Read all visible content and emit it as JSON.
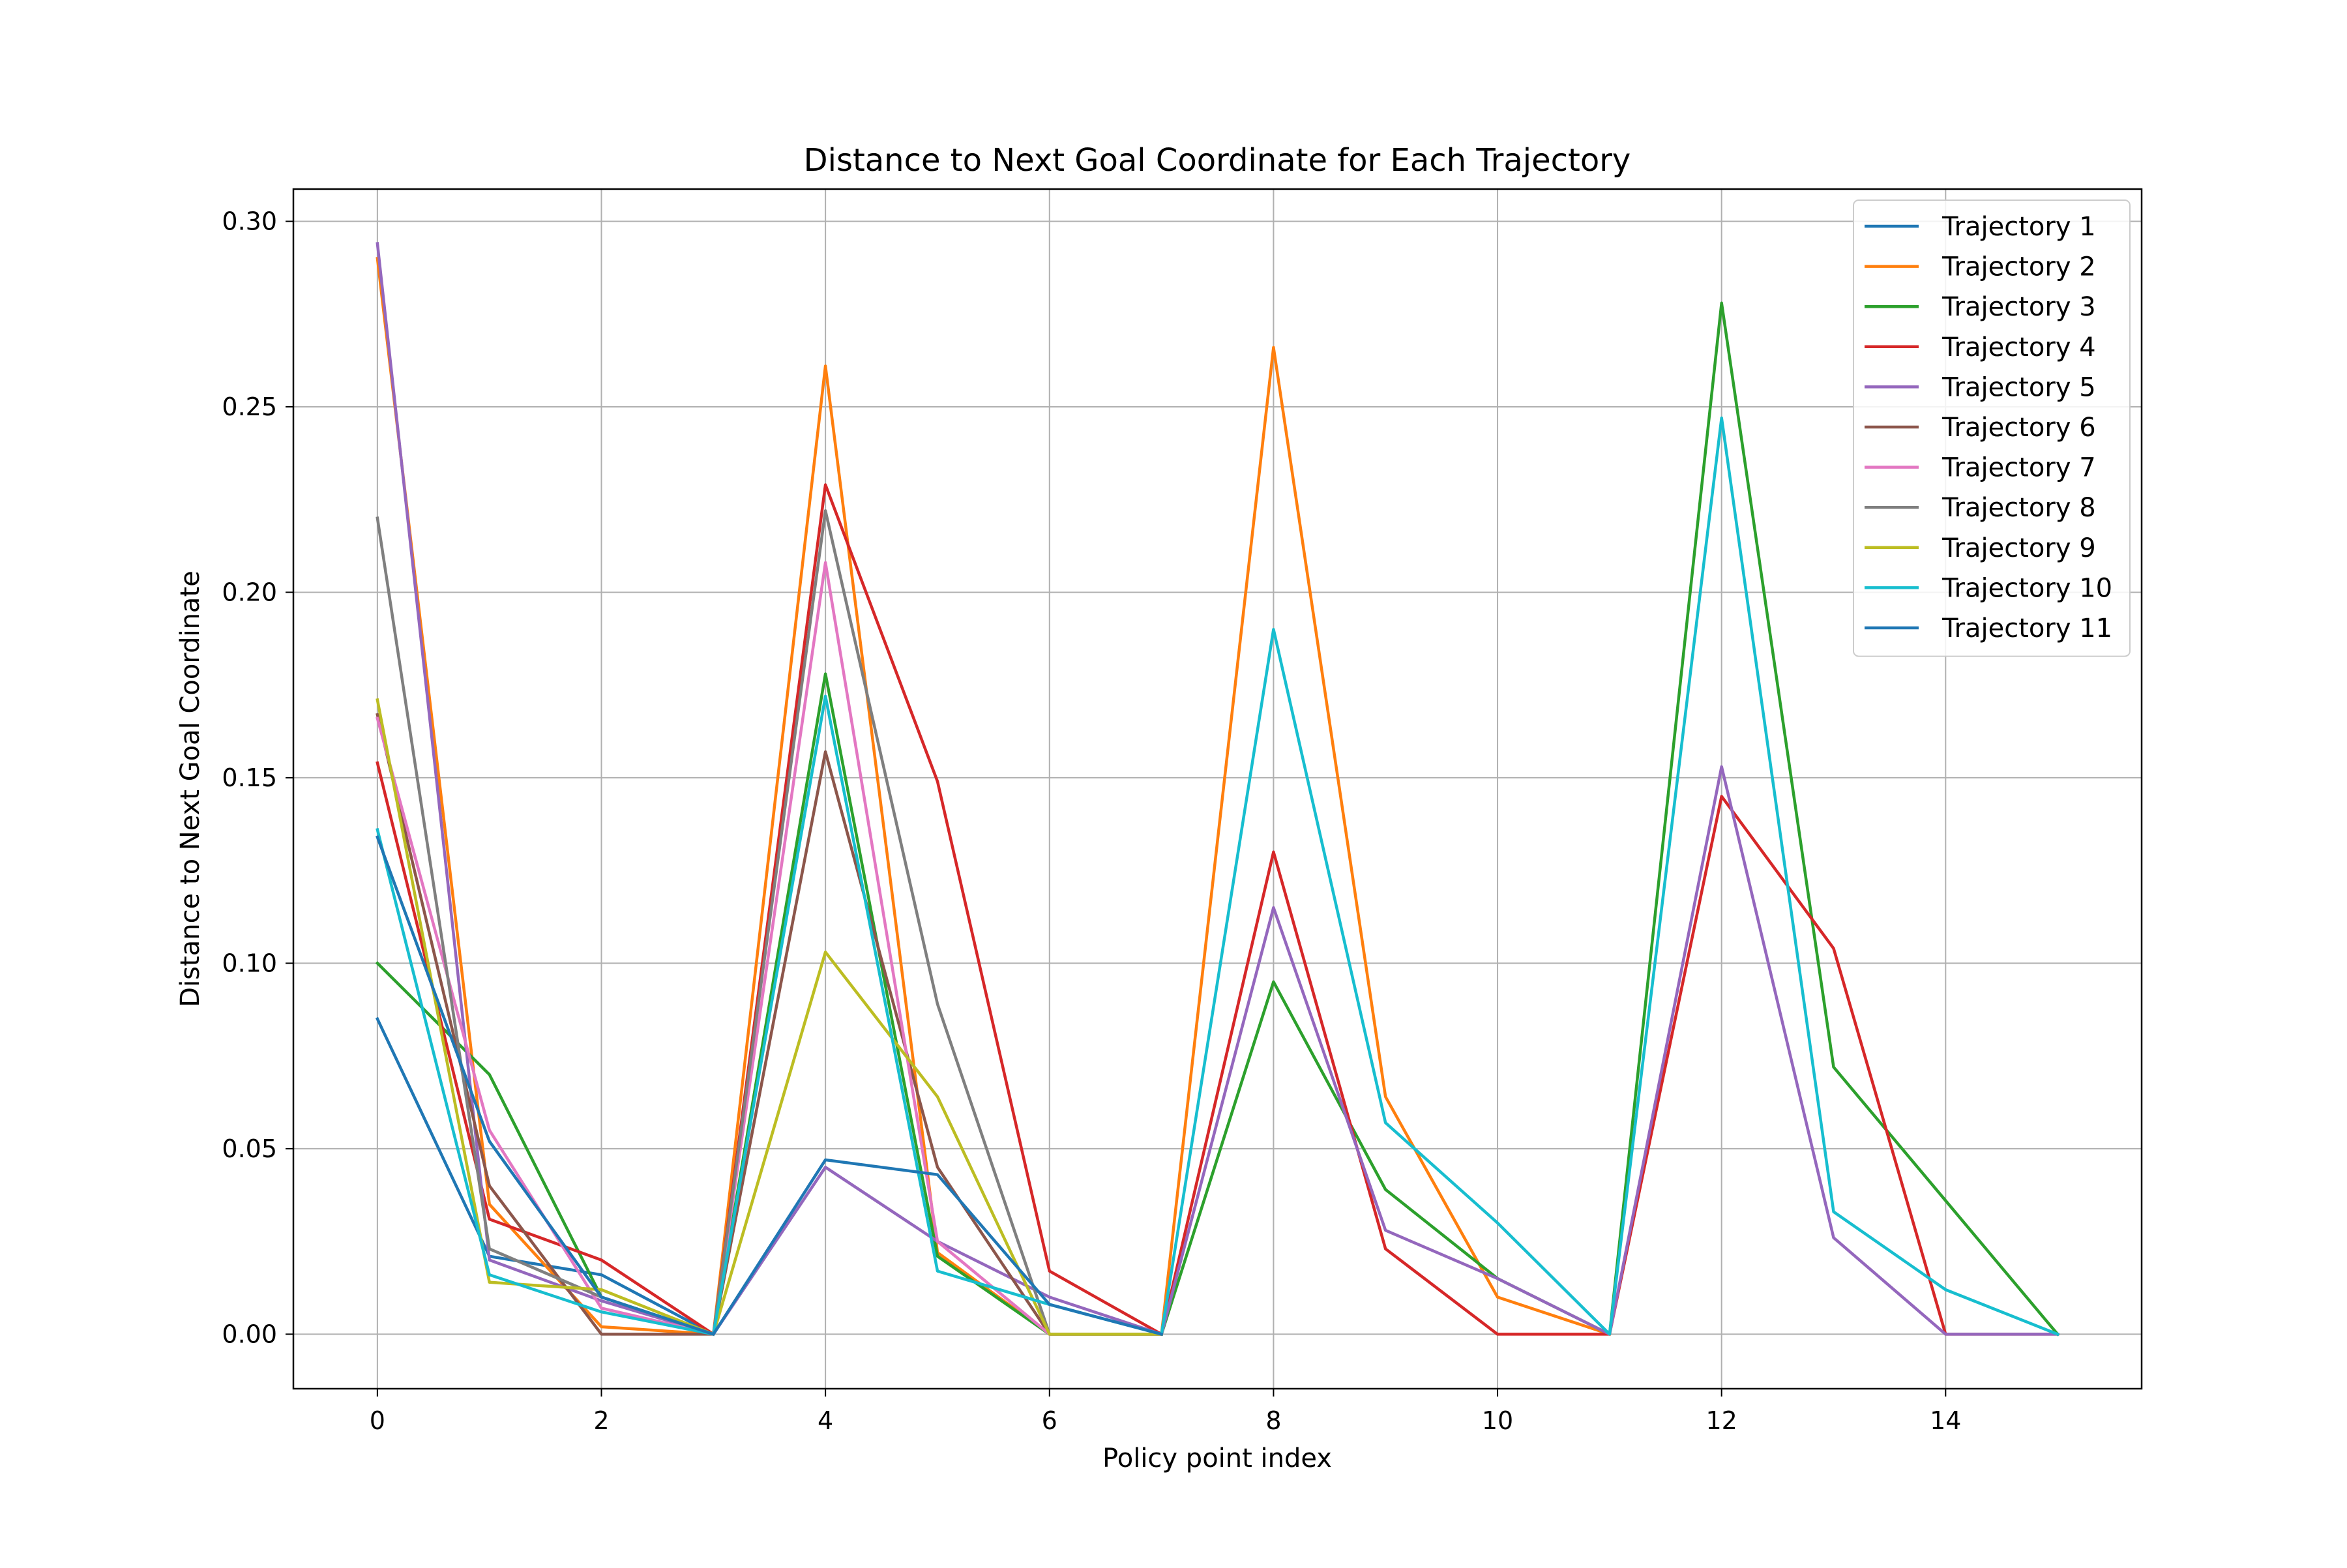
{
  "chart_data": {
    "type": "line",
    "title": "Distance to Next Goal Coordinate for Each Trajectory",
    "xlabel": "Policy point index",
    "ylabel": "Distance to Next Goal Coordinate",
    "xlim": [
      -0.75,
      15.75
    ],
    "ylim": [
      -0.0147,
      0.3087
    ],
    "xticks": [
      0,
      2,
      4,
      6,
      8,
      10,
      12,
      14
    ],
    "xtick_labels": [
      "0",
      "2",
      "4",
      "6",
      "8",
      "10",
      "12",
      "14"
    ],
    "yticks": [
      0.0,
      0.05,
      0.1,
      0.15,
      0.2,
      0.25,
      0.3
    ],
    "ytick_labels": [
      "0.00",
      "0.05",
      "0.10",
      "0.15",
      "0.20",
      "0.25",
      "0.30"
    ],
    "grid": true,
    "legend_position": "top-right",
    "series": [
      {
        "name": "Trajectory 1",
        "color": "#1f77b4",
        "x": [
          0,
          1,
          2,
          3
        ],
        "values": [
          0.085,
          0.021,
          0.016,
          0.0
        ]
      },
      {
        "name": "Trajectory 2",
        "color": "#ff7f0e",
        "x": [
          0,
          1,
          2,
          3,
          4,
          5,
          6,
          7,
          8,
          9,
          10,
          11
        ],
        "values": [
          0.29,
          0.035,
          0.002,
          0.0,
          0.261,
          0.022,
          0.0,
          0.0,
          0.266,
          0.064,
          0.01,
          0.0
        ]
      },
      {
        "name": "Trajectory 3",
        "color": "#2ca02c",
        "x": [
          0,
          1,
          2,
          3,
          4,
          5,
          6,
          7,
          8,
          9,
          10,
          11,
          12,
          13,
          14,
          15
        ],
        "values": [
          0.1,
          0.07,
          0.01,
          0.0,
          0.178,
          0.021,
          0.0,
          0.0,
          0.095,
          0.039,
          0.015,
          0.0,
          0.278,
          0.072,
          0.036,
          0.0
        ]
      },
      {
        "name": "Trajectory 4",
        "color": "#d62728",
        "x": [
          0,
          1,
          2,
          3,
          4,
          5,
          6,
          7,
          8,
          9,
          10,
          11,
          12,
          13,
          14,
          15
        ],
        "values": [
          0.154,
          0.031,
          0.02,
          0.0,
          0.229,
          0.149,
          0.017,
          0.0,
          0.13,
          0.023,
          0.0,
          0.0,
          0.145,
          0.104,
          0.0,
          0.0
        ]
      },
      {
        "name": "Trajectory 5",
        "color": "#9467bd",
        "x": [
          0,
          1,
          2,
          3,
          4,
          5,
          6,
          7,
          8,
          9,
          10,
          11,
          12,
          13,
          14,
          15
        ],
        "values": [
          0.294,
          0.02,
          0.009,
          0.0,
          0.045,
          0.025,
          0.01,
          0.0,
          0.115,
          0.028,
          0.015,
          0.0,
          0.153,
          0.026,
          0.0,
          0.0
        ]
      },
      {
        "name": "Trajectory 6",
        "color": "#8c564b",
        "x": [
          0,
          1,
          2,
          3,
          4,
          5,
          6,
          7
        ],
        "values": [
          0.167,
          0.04,
          0.0,
          0.0,
          0.157,
          0.045,
          0.0,
          0.0
        ]
      },
      {
        "name": "Trajectory 7",
        "color": "#e377c2",
        "x": [
          0,
          1,
          2,
          3,
          4,
          5,
          6,
          7
        ],
        "values": [
          0.166,
          0.055,
          0.007,
          0.0,
          0.208,
          0.025,
          0.0,
          0.0
        ]
      },
      {
        "name": "Trajectory 8",
        "color": "#7f7f7f",
        "x": [
          0,
          1,
          2,
          3,
          4,
          5,
          6,
          7
        ],
        "values": [
          0.22,
          0.023,
          0.01,
          0.0,
          0.222,
          0.089,
          0.0,
          0.0
        ]
      },
      {
        "name": "Trajectory 9",
        "color": "#bcbd22",
        "x": [
          0,
          1,
          2,
          3,
          4,
          5,
          6,
          7
        ],
        "values": [
          0.171,
          0.014,
          0.012,
          0.0,
          0.103,
          0.064,
          0.0,
          0.0
        ]
      },
      {
        "name": "Trajectory 10",
        "color": "#17becf",
        "x": [
          0,
          1,
          2,
          3,
          4,
          5,
          6,
          7,
          8,
          9,
          10,
          11,
          12,
          13,
          14,
          15
        ],
        "values": [
          0.136,
          0.016,
          0.006,
          0.0,
          0.172,
          0.017,
          0.008,
          0.0,
          0.19,
          0.057,
          0.03,
          0.0,
          0.247,
          0.033,
          0.012,
          0.0
        ]
      },
      {
        "name": "Trajectory 11",
        "color": "#1f77b4",
        "x": [
          0,
          1,
          2,
          3,
          4,
          5,
          6,
          7
        ],
        "values": [
          0.134,
          0.052,
          0.01,
          0.0,
          0.047,
          0.043,
          0.008,
          0.0
        ]
      }
    ]
  }
}
